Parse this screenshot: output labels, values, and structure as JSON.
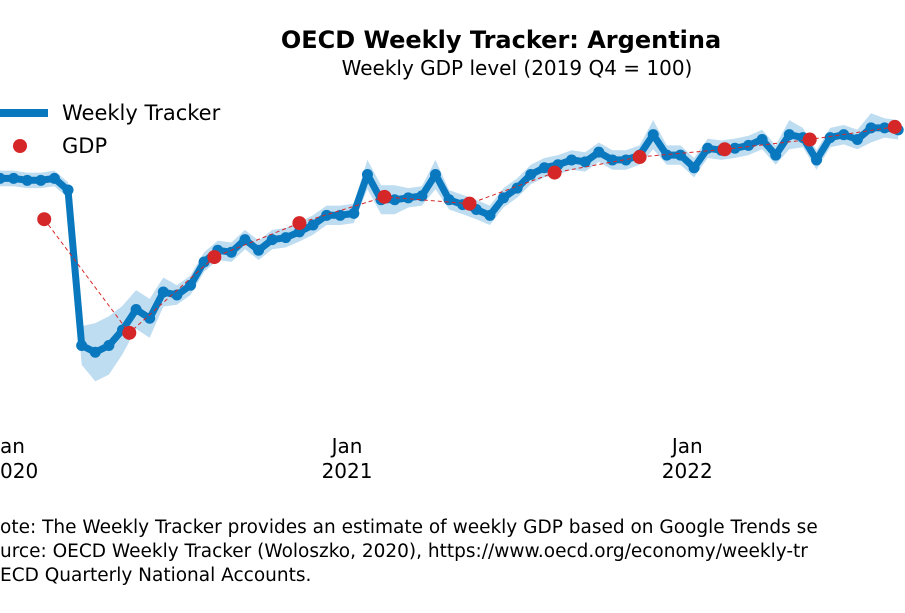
{
  "chart_data": {
    "type": "line",
    "title": "OECD Weekly Tracker: Argentina",
    "subtitle": "Weekly GDP level (2019 Q4 = 100)",
    "xlim": [
      2019.98,
      2022.64
    ],
    "ylim": [
      74,
      109
    ],
    "xticks": [
      {
        "value": 2020,
        "label": "an\n020"
      },
      {
        "value": 2021,
        "label": "Jan\n2021"
      },
      {
        "value": 2022,
        "label": "Jan\n2022"
      }
    ],
    "legend": "upper left",
    "series": [
      {
        "name": "Weekly Tracker",
        "color": "#0a78be",
        "band_color": "#a9d2ec",
        "x": [
          2019.98,
          2020.02,
          2020.06,
          2020.1,
          2020.14,
          2020.18,
          2020.22,
          2020.26,
          2020.3,
          2020.34,
          2020.38,
          2020.42,
          2020.46,
          2020.5,
          2020.54,
          2020.58,
          2020.62,
          2020.66,
          2020.7,
          2020.74,
          2020.78,
          2020.82,
          2020.86,
          2020.9,
          2020.94,
          2020.98,
          2021.02,
          2021.06,
          2021.1,
          2021.14,
          2021.18,
          2021.22,
          2021.26,
          2021.3,
          2021.34,
          2021.38,
          2021.42,
          2021.46,
          2021.5,
          2021.54,
          2021.58,
          2021.62,
          2021.66,
          2021.7,
          2021.74,
          2021.78,
          2021.82,
          2021.86,
          2021.9,
          2021.94,
          2021.98,
          2022.02,
          2022.06,
          2022.1,
          2022.14,
          2022.18,
          2022.22,
          2022.26,
          2022.3,
          2022.34,
          2022.38,
          2022.42,
          2022.46,
          2022.5,
          2022.54,
          2022.58,
          2022.62
        ],
        "values": [
          99.9,
          99.9,
          99.7,
          99.7,
          99.9,
          98.7,
          82.7,
          82.0,
          82.7,
          84.3,
          86.4,
          85.5,
          88.2,
          87.9,
          88.9,
          91.3,
          92.5,
          92.3,
          93.6,
          92.5,
          93.6,
          93.8,
          94.4,
          95.1,
          96.1,
          96.1,
          96.3,
          100.3,
          97.7,
          97.7,
          97.9,
          98.1,
          100.3,
          97.7,
          97.2,
          96.7,
          96.1,
          97.9,
          98.9,
          100.3,
          101.0,
          101.3,
          101.8,
          101.6,
          102.6,
          101.8,
          101.8,
          102.3,
          104.4,
          102.3,
          102.3,
          101.0,
          103.0,
          102.8,
          103.0,
          103.3,
          103.9,
          102.3,
          104.4,
          104.1,
          101.8,
          104.1,
          104.4,
          103.9,
          105.1,
          105.1,
          104.9
        ],
        "uncertainty": [
          0.8,
          0.8,
          0.8,
          0.8,
          0.8,
          0.8,
          2.0,
          3.0,
          3.0,
          2.5,
          2.0,
          2.0,
          1.5,
          1.0,
          1.0,
          1.0,
          1.0,
          1.0,
          1.0,
          1.0,
          1.0,
          1.0,
          1.0,
          1.0,
          1.0,
          1.0,
          1.0,
          1.5,
          1.5,
          1.5,
          1.0,
          1.0,
          1.5,
          1.0,
          1.0,
          1.0,
          1.0,
          1.0,
          1.0,
          1.0,
          1.0,
          1.0,
          1.0,
          1.0,
          1.0,
          1.0,
          1.0,
          1.0,
          1.5,
          1.0,
          1.0,
          1.0,
          1.0,
          1.0,
          1.0,
          1.0,
          1.0,
          1.0,
          1.5,
          1.0,
          1.0,
          1.0,
          1.0,
          1.0,
          1.5,
          1.0,
          1.0
        ]
      },
      {
        "name": "GDP",
        "color": "#d62728",
        "x": [
          2020.11,
          2020.36,
          2020.61,
          2020.86,
          2021.11,
          2021.36,
          2021.61,
          2021.86,
          2022.11,
          2022.36,
          2022.61
        ],
        "values": [
          95.7,
          84.0,
          91.8,
          95.3,
          98.0,
          97.3,
          100.5,
          102.1,
          102.9,
          103.9,
          105.2
        ]
      }
    ],
    "notes": [
      "ote: The Weekly Tracker provides an estimate of weekly GDP based on Google Trends se",
      "urce: OECD Weekly Tracker (Woloszko, 2020), https://www.oecd.org/economy/weekly-tr",
      "ECD Quarterly National Accounts."
    ]
  }
}
